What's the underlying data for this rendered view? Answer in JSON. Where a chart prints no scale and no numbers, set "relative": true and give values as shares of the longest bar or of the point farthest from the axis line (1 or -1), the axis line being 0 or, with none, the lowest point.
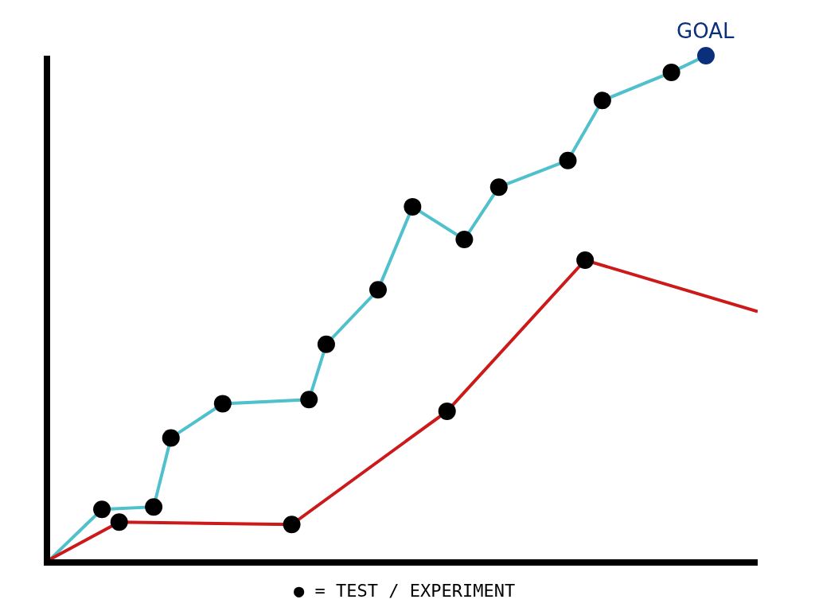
{
  "chart_data": {
    "type": "line",
    "relative": true,
    "marker": "circle",
    "line_style": "solid",
    "categories": [
      null,
      null,
      null,
      null,
      null,
      null,
      null,
      null,
      null,
      null,
      null,
      null,
      null,
      null,
      null,
      null,
      null,
      null,
      null,
      null,
      null,
      null,
      null,
      null,
      null,
      null,
      null,
      null,
      null,
      null,
      null,
      null,
      null,
      null,
      null,
      null,
      null,
      null,
      null,
      null,
      null,
      null
    ],
    "series": [
      {
        "color": "#4fc0cc",
        "values": [
          0,
          null,
          null,
          0.099,
          null,
          null,
          0.104,
          0.241,
          null,
          null,
          0.309,
          null,
          null,
          null,
          null,
          0.317,
          0.427,
          null,
          null,
          0.535,
          null,
          0.7,
          null,
          null,
          0.635,
          null,
          0.739,
          null,
          null,
          null,
          0.792,
          null,
          0.911,
          null,
          null,
          null,
          0.967,
          null,
          1,
          null,
          null,
          null
        ],
        "colors": [
          null,
          null,
          null,
          "#000000",
          null,
          null,
          "#000000",
          "#000000",
          null,
          null,
          "#000000",
          null,
          null,
          null,
          null,
          "#000000",
          "#000000",
          null,
          null,
          "#000000",
          null,
          "#000000",
          null,
          null,
          "#000000",
          null,
          "#000000",
          null,
          null,
          null,
          "#000000",
          null,
          "#000000",
          null,
          null,
          null,
          "#000000",
          null,
          "#0b2f7a",
          null,
          null,
          null
        ]
      },
      {
        "color": "#cc1a1a",
        "values": [
          0,
          null,
          null,
          null,
          0.074,
          null,
          null,
          null,
          null,
          null,
          null,
          null,
          null,
          null,
          0.069,
          null,
          null,
          null,
          null,
          null,
          null,
          null,
          null,
          0.294,
          null,
          null,
          null,
          null,
          null,
          null,
          null,
          0.594,
          null,
          null,
          null,
          null,
          null,
          null,
          null,
          null,
          null,
          0.492
        ],
        "colors": [
          null,
          null,
          null,
          null,
          "#000000",
          null,
          null,
          null,
          null,
          null,
          null,
          null,
          null,
          null,
          "#000000",
          null,
          null,
          null,
          null,
          null,
          null,
          null,
          null,
          "#000000",
          null,
          null,
          null,
          null,
          null,
          null,
          null,
          "#000000",
          null,
          null,
          null,
          null,
          null,
          null,
          null,
          null,
          null,
          null
        ]
      }
    ],
    "annotations": [
      {
        "text": "GOAL",
        "y": 1
      },
      "● = TEST / EXPERIMENT"
    ]
  }
}
